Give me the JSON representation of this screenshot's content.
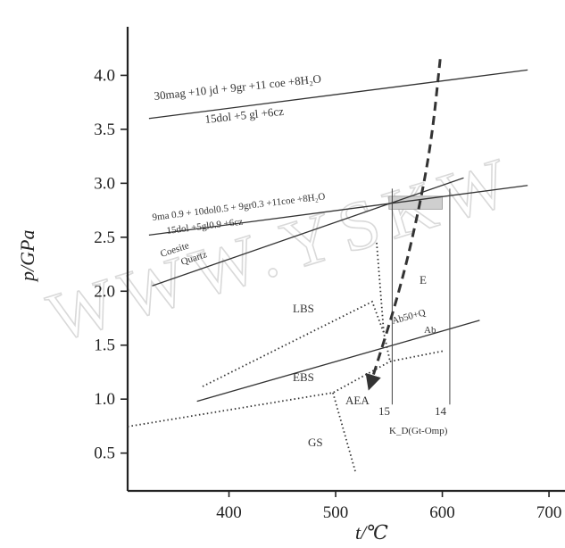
{
  "chart_data": {
    "type": "line",
    "xlabel": "t/℃",
    "ylabel": "p/GPa",
    "xlim": [
      305,
      715
    ],
    "ylim": [
      0.15,
      4.45
    ],
    "x_ticks": [
      "400",
      "500",
      "600",
      "700"
    ],
    "y_ticks": [
      "0.5",
      "1.0",
      "1.5",
      "2.0",
      "2.5",
      "3.0",
      "3.5",
      "4.0"
    ],
    "x_tick_values": [
      400,
      500,
      600,
      700
    ],
    "y_tick_values": [
      0.5,
      1.0,
      1.5,
      2.0,
      2.5,
      3.0,
      3.5,
      4.0
    ],
    "reactions": [
      {
        "label": "30mag +10 jd + 9gr +11 coe +8H₂O",
        "x": [
          325,
          680
        ],
        "y": [
          3.6,
          4.05
        ]
      },
      {
        "label": "15dol +5 gl +6cz"
      },
      {
        "label": "9ma 0.9 + 10dol0.5 + 9gr0.3 +11coe +8H₂O",
        "x": [
          325,
          680
        ],
        "y": [
          2.52,
          2.98
        ]
      },
      {
        "label": "15dol +5gl0.9 +6cz"
      },
      {
        "label": "Coesite",
        "x": [
          328,
          620
        ],
        "y": [
          2.05,
          3.05
        ]
      },
      {
        "label": "Quartz"
      },
      {
        "label": "Ab50+Q",
        "x": [
          370,
          635
        ],
        "y": [
          0.98,
          1.73
        ]
      },
      {
        "label": "Ab"
      }
    ],
    "isopleths": [
      {
        "label": "15",
        "x": [
          553,
          553
        ],
        "y": [
          0.95,
          2.95
        ]
      },
      {
        "label": "14",
        "x": [
          607,
          607
        ],
        "y": [
          0.95,
          2.95
        ]
      }
    ],
    "isopleth_caption": "K_D(Gt-Omp)",
    "facies_labels": [
      "LBS",
      "E",
      "EBS",
      "AEA",
      "GS"
    ],
    "pt_path": {
      "type": "arrow",
      "x": [
        598,
        590,
        578,
        560,
        533
      ],
      "y": [
        4.15,
        3.4,
        2.75,
        2.0,
        1.15
      ]
    },
    "highlight_box": {
      "x": [
        550,
        600
      ],
      "y": [
        2.76,
        2.88
      ]
    },
    "watermark": "WWW.YSKW"
  }
}
